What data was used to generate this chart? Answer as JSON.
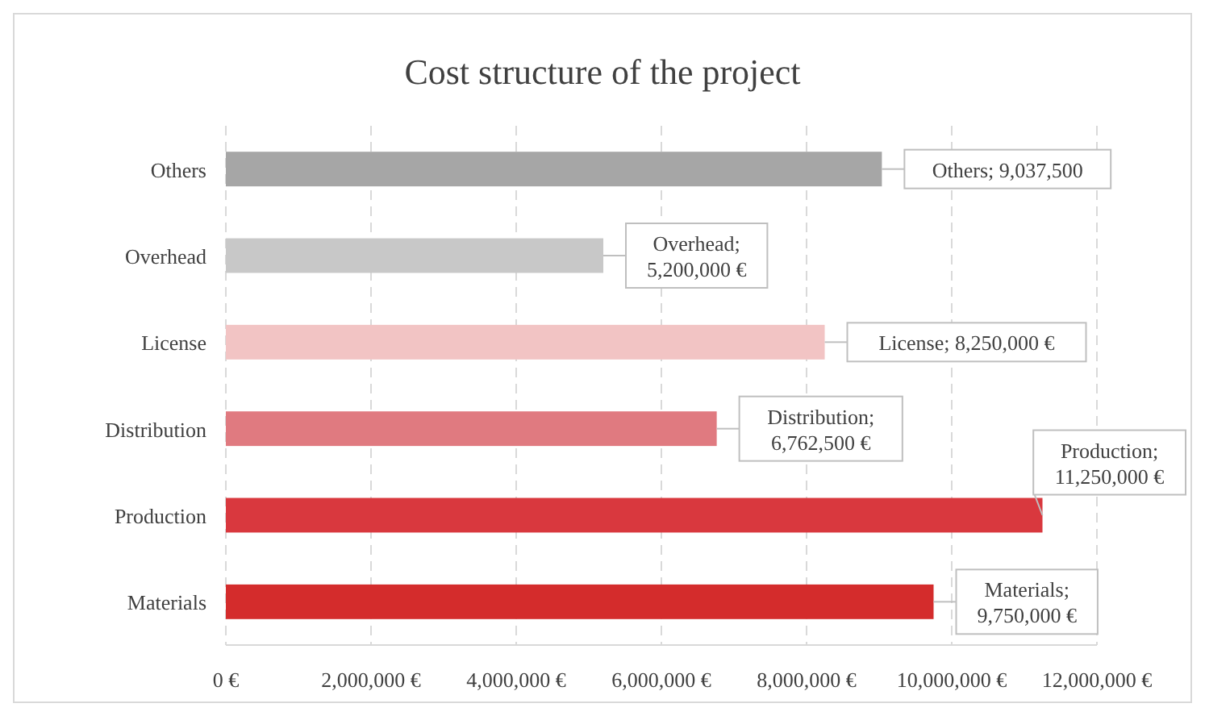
{
  "chart_data": {
    "type": "bar",
    "orientation": "horizontal",
    "title": "Cost structure of the project",
    "categories": [
      "Others",
      "Overhead",
      "License",
      "Distribution",
      "Production",
      "Materials"
    ],
    "values": [
      9037500,
      5200000,
      8250000,
      6762500,
      11250000,
      9750000
    ],
    "colors": [
      "#a6a6a6",
      "#c8c8c8",
      "#f2c4c4",
      "#e07a80",
      "#d9383e",
      "#d42c2c"
    ],
    "value_labels": [
      "Others; 9,037,500",
      "Overhead; 5,200,000 €",
      "License; 8,250,000 €",
      "Distribution; 6,762,500 €",
      "Production; 11,250,000 €",
      "Materials; 9,750,000 €"
    ],
    "xlim": [
      0,
      12000000
    ],
    "xticks": [
      {
        "value": 0,
        "label": "0 €"
      },
      {
        "value": 2000000,
        "label": "2,000,000 €"
      },
      {
        "value": 4000000,
        "label": "4,000,000 €"
      },
      {
        "value": 6000000,
        "label": "6,000,000 €"
      },
      {
        "value": 8000000,
        "label": "8,000,000 €"
      },
      {
        "value": 10000000,
        "label": "10,000,000 €"
      },
      {
        "value": 12000000,
        "label": "12,000,000 €"
      }
    ],
    "grid": "x"
  }
}
